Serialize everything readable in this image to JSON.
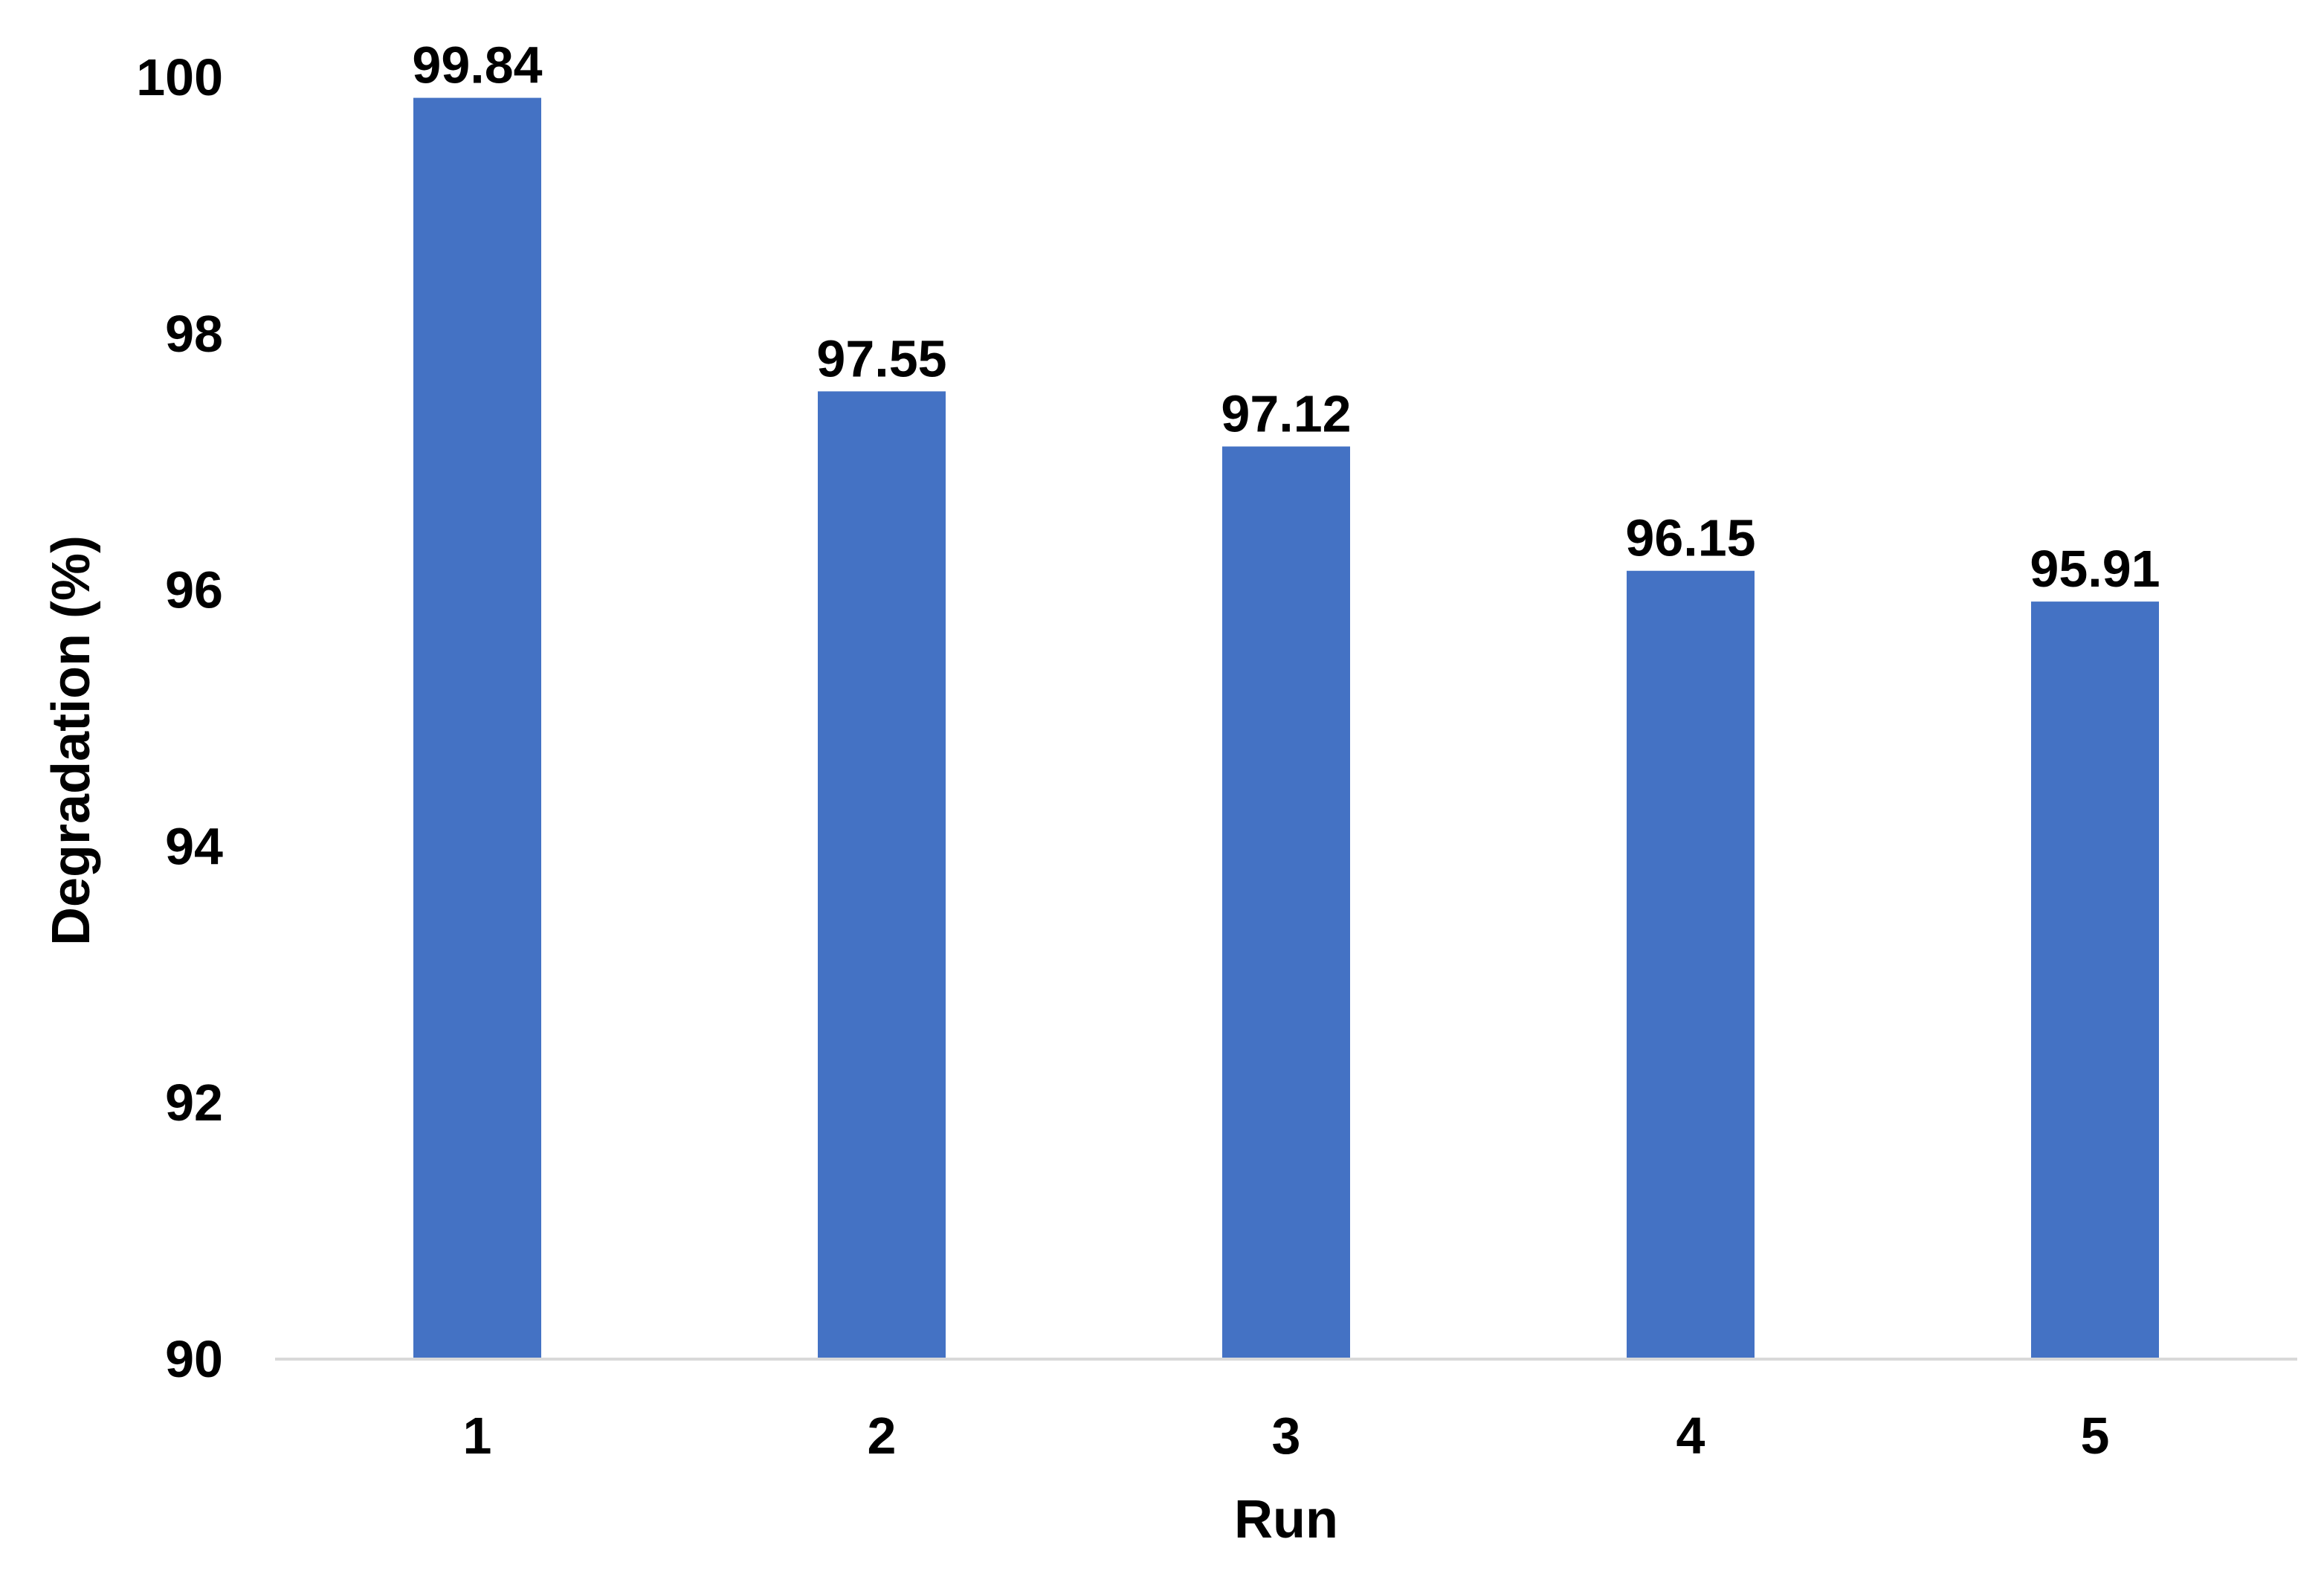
{
  "chart_data": {
    "type": "bar",
    "title": "",
    "xlabel": "Run",
    "ylabel": "Degradation  (%)",
    "categories": [
      "1",
      "2",
      "3",
      "4",
      "5"
    ],
    "values": [
      99.84,
      97.55,
      97.12,
      96.15,
      95.91
    ],
    "data_labels": [
      "99.84",
      "97.55",
      "97.12",
      "96.15",
      "95.91"
    ],
    "ylim": [
      90,
      100
    ],
    "yticks": [
      "90",
      "92",
      "94",
      "96",
      "98",
      "100"
    ],
    "grid": false,
    "legend": "none",
    "bar_color": "#4472C4",
    "axis_color": "#D9D9D9"
  }
}
